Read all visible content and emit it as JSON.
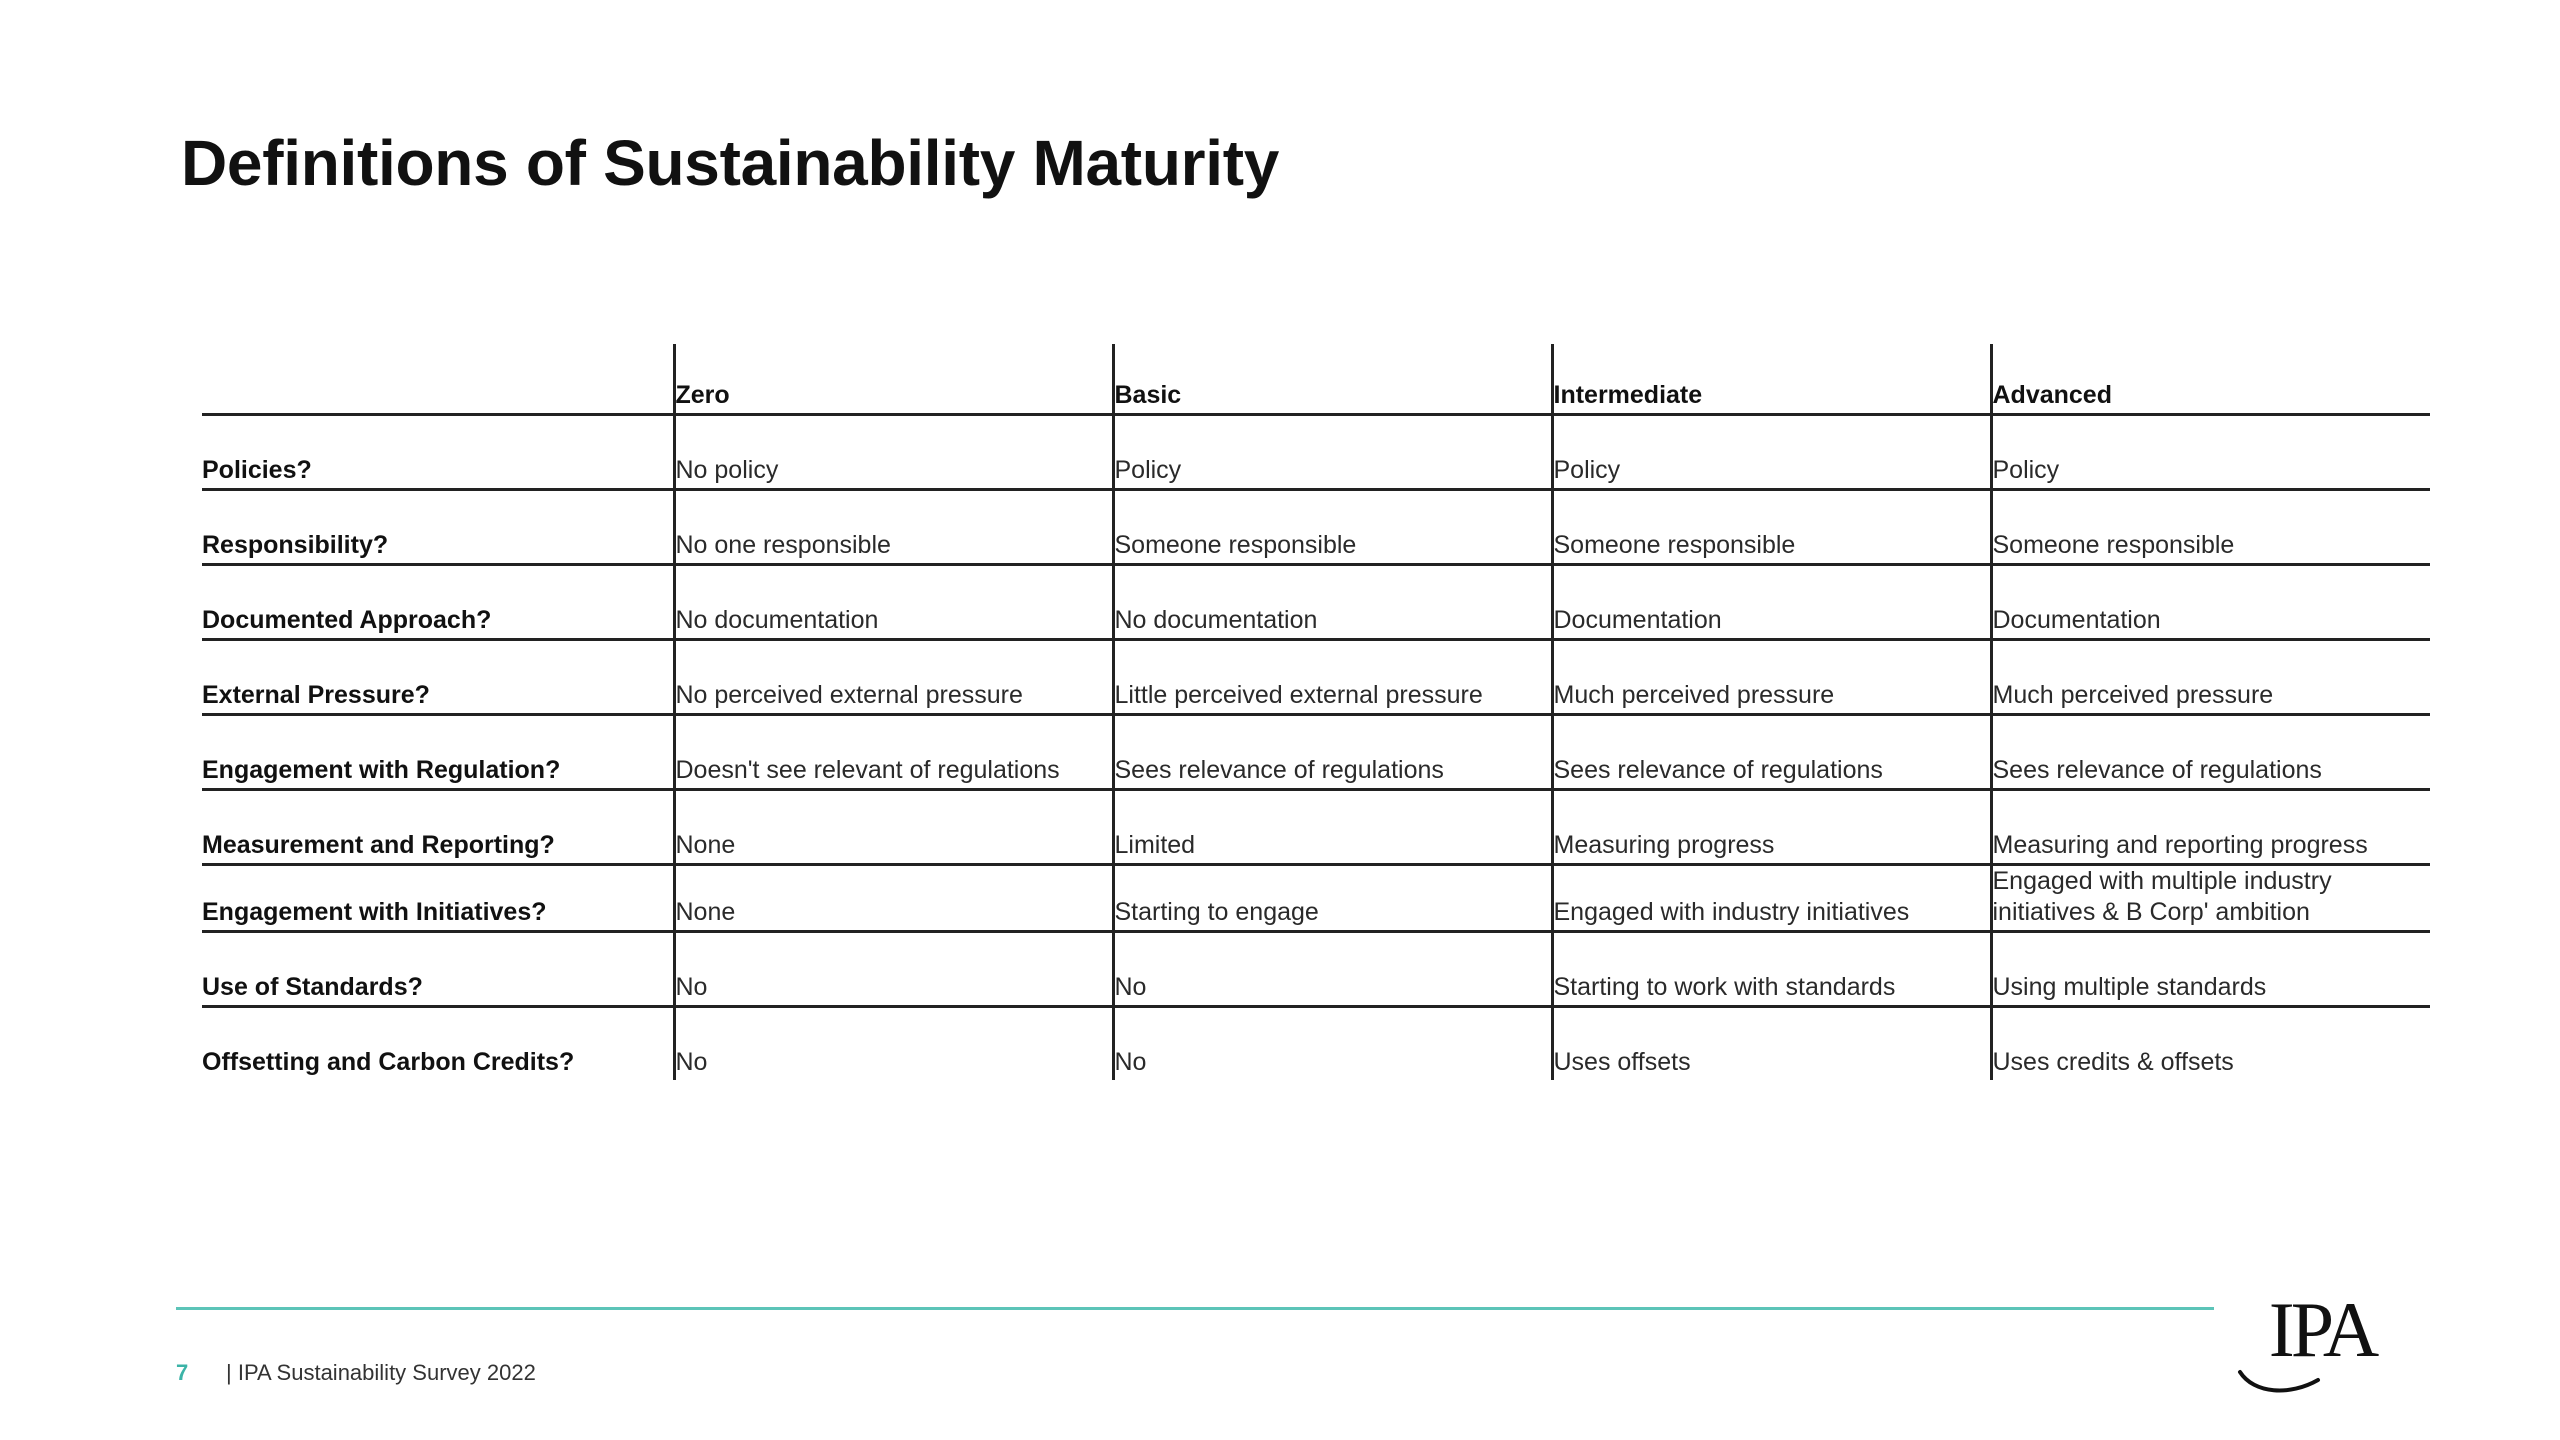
{
  "slide": {
    "title": "Definitions of Sustainability Maturity"
  },
  "table": {
    "levels": [
      "Zero",
      "Basic",
      "Intermediate",
      "Advanced"
    ],
    "rows": [
      {
        "label": "Policies?",
        "cells": [
          "No policy",
          "Policy",
          "Policy",
          "Policy"
        ]
      },
      {
        "label": "Responsibility?",
        "cells": [
          "No one responsible",
          "Someone responsible",
          "Someone responsible",
          "Someone responsible"
        ]
      },
      {
        "label": "Documented Approach?",
        "cells": [
          "No documentation",
          "No documentation",
          "Documentation",
          "Documentation"
        ]
      },
      {
        "label": "External Pressure?",
        "cells": [
          "No perceived external pressure",
          "Little perceived external pressure",
          "Much perceived pressure",
          "Much perceived pressure"
        ]
      },
      {
        "label": "Engagement with Regulation?",
        "cells": [
          "Doesn't see relevant of regulations",
          "Sees relevance of regulations",
          "Sees relevance of regulations",
          "Sees relevance of regulations"
        ]
      },
      {
        "label": "Measurement and Reporting?",
        "cells": [
          "None",
          "Limited",
          "Measuring progress",
          "Measuring and reporting progress"
        ]
      },
      {
        "label": "Engagement with Initiatives?",
        "cells": [
          "None",
          "Starting to engage",
          "Engaged with industry initiatives",
          "Engaged with multiple industry initiatives & B Corp' ambition"
        ]
      },
      {
        "label": "Use of Standards?",
        "cells": [
          "No",
          "No",
          "Starting to work with standards",
          "Using multiple standards"
        ]
      },
      {
        "label": "Offsetting and Carbon Credits?",
        "cells": [
          "No",
          "No",
          "Uses offsets",
          "Uses credits & offsets"
        ]
      }
    ]
  },
  "footer": {
    "page_number": "7",
    "text": "| IPA Sustainability Survey 2022",
    "accent_color": "#5cc4b8"
  },
  "logo": {
    "text": "IPA"
  }
}
